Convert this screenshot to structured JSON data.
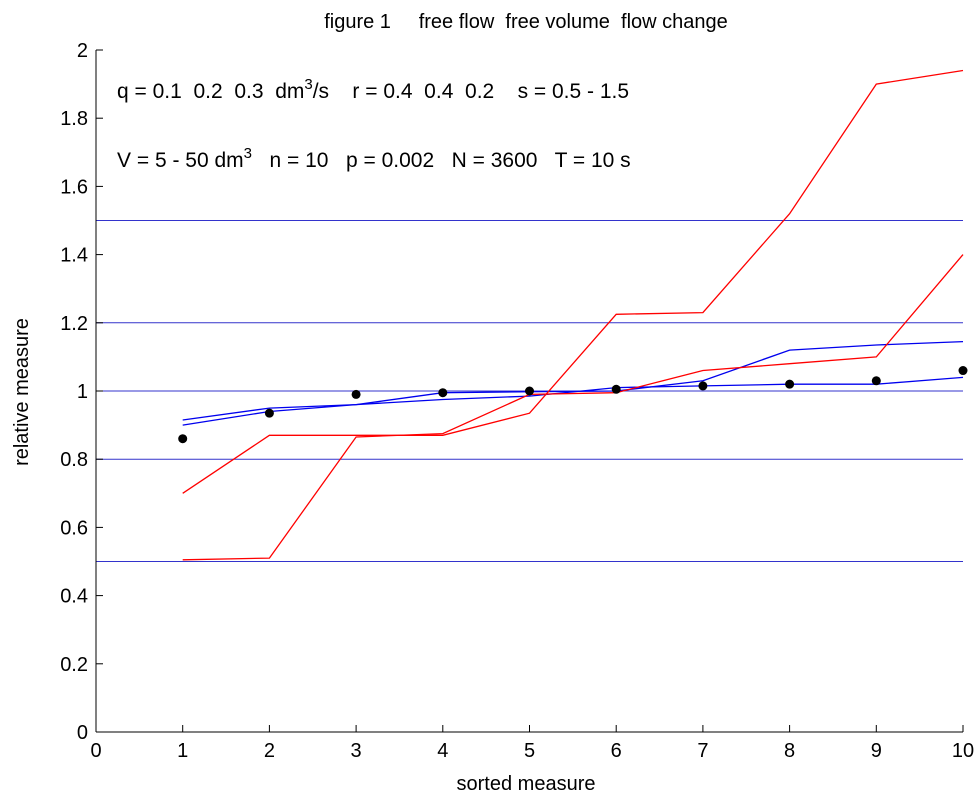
{
  "chart_data": {
    "type": "line",
    "title": "figure 1     free flow  free volume  flow change",
    "xlabel": "sorted measure",
    "ylabel": "relative measure",
    "xlim": [
      0,
      10
    ],
    "ylim": [
      0,
      2
    ],
    "xticks": [
      0,
      1,
      2,
      3,
      4,
      5,
      6,
      7,
      8,
      9,
      10
    ],
    "xtick_labels": [
      "0",
      "1",
      "2",
      "3",
      "4",
      "5",
      "6",
      "7",
      "8",
      "9",
      "10"
    ],
    "yticks": [
      0,
      0.2,
      0.4,
      0.6,
      0.8,
      1.0,
      1.2,
      1.4,
      1.6,
      1.8,
      2.0
    ],
    "ytick_labels": [
      "0",
      "0.2",
      "0.4",
      "0.6",
      "0.8",
      "1",
      "1.2",
      "1.4",
      "1.6",
      "1.8",
      "2"
    ],
    "grid": false,
    "annotations": {
      "line1_a": "q = 0.1  0.2  0.3  dm",
      "line1_sup": "3",
      "line1_b": "/s    r = 0.4  0.4  0.2    s = 0.5 - 1.5",
      "line2_a": "V = 5 - 50 dm",
      "line2_sup": "3",
      "line2_b": "   n = 10   p = 0.002   N = 3600   T = 10 s"
    },
    "reference_lines": {
      "color": "#3333cc",
      "y": [
        0.5,
        0.8,
        1.0,
        1.2,
        1.5
      ]
    },
    "series": [
      {
        "kind": "scatter",
        "color": "#000000",
        "x": [
          1,
          2,
          3,
          4,
          5,
          6,
          7,
          8,
          9,
          10
        ],
        "y": [
          0.86,
          0.935,
          0.99,
          0.995,
          1.0,
          1.005,
          1.015,
          1.02,
          1.03,
          1.06
        ]
      },
      {
        "kind": "line",
        "color": "#0000ee",
        "x": [
          1,
          2,
          3,
          4,
          5,
          6,
          7,
          8,
          9,
          10
        ],
        "y": [
          0.915,
          0.95,
          0.96,
          0.995,
          0.998,
          1.0,
          1.03,
          1.12,
          1.135,
          1.145
        ]
      },
      {
        "kind": "line",
        "color": "#0000ee",
        "x": [
          1,
          2,
          3,
          4,
          5,
          6,
          7,
          8,
          9,
          10
        ],
        "y": [
          0.9,
          0.94,
          0.96,
          0.975,
          0.985,
          1.01,
          1.015,
          1.02,
          1.02,
          1.04
        ]
      },
      {
        "kind": "line",
        "color": "#ff0000",
        "x": [
          1,
          2,
          3,
          4,
          5,
          6,
          7,
          8,
          9,
          10
        ],
        "y": [
          0.505,
          0.51,
          0.865,
          0.875,
          0.99,
          0.995,
          1.06,
          1.08,
          1.1,
          1.4
        ]
      },
      {
        "kind": "line",
        "color": "#ff0000",
        "x": [
          1,
          2,
          3,
          4,
          5,
          6,
          7,
          8,
          9,
          10
        ],
        "y": [
          0.7,
          0.87,
          0.87,
          0.87,
          0.935,
          1.225,
          1.23,
          1.52,
          1.9,
          1.94
        ]
      }
    ]
  }
}
